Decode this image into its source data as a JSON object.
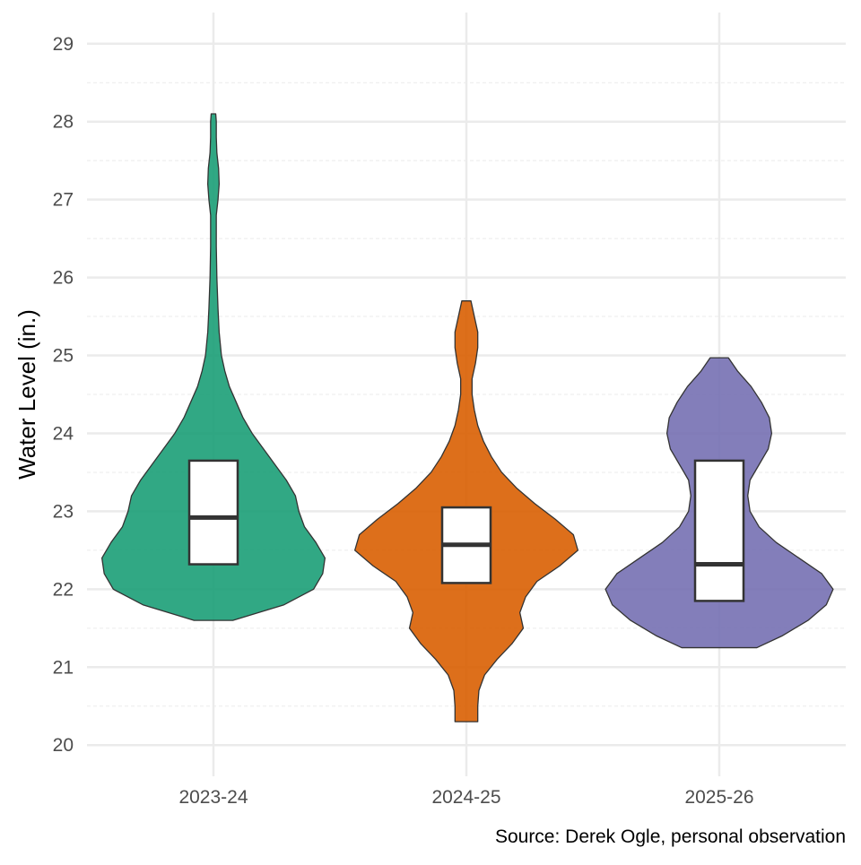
{
  "chart_data": {
    "type": "violin",
    "title": "",
    "xlabel": "",
    "ylabel": "Water Level (in.)",
    "caption": "Source: Derek Ogle, personal observation",
    "ylim": [
      19.6,
      29.4
    ],
    "yticks": [
      20,
      21,
      22,
      23,
      24,
      25,
      26,
      27,
      28,
      29
    ],
    "grid": true,
    "legend": "none",
    "categories": [
      "2023-24",
      "2024-25",
      "2025-26"
    ],
    "colors": [
      "#1b9e77",
      "#d95f02",
      "#7570b3"
    ],
    "series": [
      {
        "category": "2023-24",
        "min": 21.6,
        "max": 28.1,
        "q1": 22.32,
        "median": 22.92,
        "q3": 23.65,
        "density": [
          [
            21.6,
            0.17
          ],
          [
            21.8,
            0.62
          ],
          [
            22.0,
            0.88
          ],
          [
            22.2,
            0.96
          ],
          [
            22.4,
            0.98
          ],
          [
            22.6,
            0.9
          ],
          [
            22.8,
            0.8
          ],
          [
            23.0,
            0.75
          ],
          [
            23.2,
            0.72
          ],
          [
            23.4,
            0.64
          ],
          [
            23.6,
            0.54
          ],
          [
            23.8,
            0.44
          ],
          [
            24.0,
            0.34
          ],
          [
            24.2,
            0.26
          ],
          [
            24.4,
            0.2
          ],
          [
            24.6,
            0.14
          ],
          [
            24.8,
            0.1
          ],
          [
            25.0,
            0.07
          ],
          [
            25.3,
            0.05
          ],
          [
            25.6,
            0.04
          ],
          [
            26.0,
            0.03
          ],
          [
            26.4,
            0.025
          ],
          [
            26.8,
            0.025
          ],
          [
            27.0,
            0.04
          ],
          [
            27.2,
            0.05
          ],
          [
            27.4,
            0.045
          ],
          [
            27.6,
            0.03
          ],
          [
            27.8,
            0.025
          ],
          [
            28.0,
            0.025
          ],
          [
            28.1,
            0.02
          ]
        ]
      },
      {
        "category": "2024-25",
        "min": 20.3,
        "max": 25.7,
        "q1": 22.08,
        "median": 22.57,
        "q3": 23.05,
        "density": [
          [
            20.3,
            0.1
          ],
          [
            20.5,
            0.1
          ],
          [
            20.7,
            0.11
          ],
          [
            20.9,
            0.16
          ],
          [
            21.1,
            0.27
          ],
          [
            21.3,
            0.4
          ],
          [
            21.5,
            0.5
          ],
          [
            21.7,
            0.47
          ],
          [
            21.9,
            0.52
          ],
          [
            22.1,
            0.62
          ],
          [
            22.3,
            0.82
          ],
          [
            22.5,
            0.98
          ],
          [
            22.7,
            0.94
          ],
          [
            22.9,
            0.78
          ],
          [
            23.1,
            0.6
          ],
          [
            23.3,
            0.44
          ],
          [
            23.5,
            0.31
          ],
          [
            23.7,
            0.22
          ],
          [
            23.9,
            0.15
          ],
          [
            24.1,
            0.1
          ],
          [
            24.3,
            0.07
          ],
          [
            24.5,
            0.05
          ],
          [
            24.7,
            0.05
          ],
          [
            24.9,
            0.08
          ],
          [
            25.1,
            0.1
          ],
          [
            25.3,
            0.1
          ],
          [
            25.5,
            0.07
          ],
          [
            25.7,
            0.04
          ]
        ]
      },
      {
        "category": "2025-26",
        "min": 21.25,
        "max": 24.97,
        "q1": 21.85,
        "median": 22.32,
        "q3": 23.65,
        "density": [
          [
            21.25,
            0.33
          ],
          [
            21.4,
            0.55
          ],
          [
            21.6,
            0.78
          ],
          [
            21.8,
            0.94
          ],
          [
            22.0,
            1.0
          ],
          [
            22.2,
            0.9
          ],
          [
            22.4,
            0.7
          ],
          [
            22.6,
            0.5
          ],
          [
            22.8,
            0.35
          ],
          [
            23.0,
            0.27
          ],
          [
            23.2,
            0.25
          ],
          [
            23.4,
            0.27
          ],
          [
            23.6,
            0.35
          ],
          [
            23.8,
            0.43
          ],
          [
            24.0,
            0.46
          ],
          [
            24.2,
            0.44
          ],
          [
            24.4,
            0.37
          ],
          [
            24.6,
            0.28
          ],
          [
            24.8,
            0.16
          ],
          [
            24.97,
            0.08
          ]
        ]
      }
    ]
  }
}
